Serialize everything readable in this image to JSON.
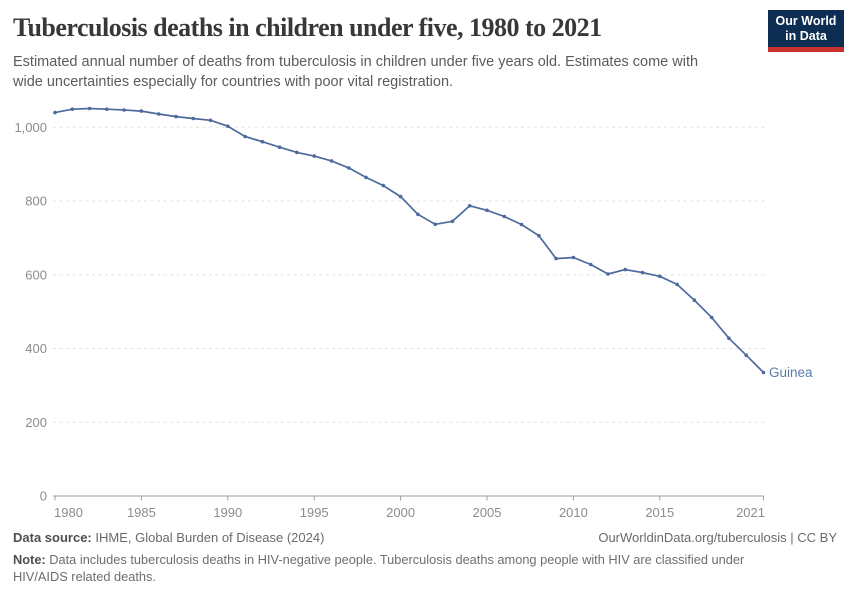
{
  "header": {
    "title": "Tuberculosis deaths in children under five, 1980 to 2021",
    "subtitle": "Estimated annual number of deaths from tuberculosis in children under five years old. Estimates come with wide uncertainties especially for countries with poor vital registration.",
    "logo": {
      "line1": "Our World",
      "line2": "in Data",
      "bg_color": "#0d2e52",
      "accent_color": "#c9302c"
    }
  },
  "chart_data": {
    "type": "line",
    "title": "Tuberculosis deaths in children under five, 1980 to 2021",
    "x": [
      1980,
      1981,
      1982,
      1983,
      1984,
      1985,
      1986,
      1987,
      1988,
      1989,
      1990,
      1991,
      1992,
      1993,
      1994,
      1995,
      1996,
      1997,
      1998,
      1999,
      2000,
      2001,
      2002,
      2003,
      2004,
      2005,
      2006,
      2007,
      2008,
      2009,
      2010,
      2011,
      2012,
      2013,
      2014,
      2015,
      2016,
      2017,
      2018,
      2019,
      2020,
      2021
    ],
    "series": [
      {
        "name": "Guinea",
        "color": "#4C6A9C",
        "values": [
          1040,
          1049,
          1051,
          1049,
          1047,
          1044,
          1036,
          1029,
          1024,
          1019,
          1003,
          975,
          961,
          946,
          932,
          922,
          909,
          890,
          864,
          842,
          812,
          764,
          737,
          745,
          787,
          775,
          758,
          736,
          706,
          644,
          647,
          628,
          602,
          614,
          606,
          596,
          574,
          531,
          484,
          428,
          382,
          335
        ]
      }
    ],
    "end_label": "Guinea",
    "label_color": "#5b7cab",
    "x_ticks": [
      {
        "label": "1980",
        "year": 1980
      },
      {
        "label": "1985",
        "year": 1985
      },
      {
        "label": "1990",
        "year": 1990
      },
      {
        "label": "1995",
        "year": 1995
      },
      {
        "label": "2000",
        "year": 2000
      },
      {
        "label": "2005",
        "year": 2005
      },
      {
        "label": "2010",
        "year": 2010
      },
      {
        "label": "2015",
        "year": 2015
      },
      {
        "label": "2021",
        "year": 2021
      }
    ],
    "y_ticks": [
      {
        "label": "0",
        "value": 0
      },
      {
        "label": "200",
        "value": 200
      },
      {
        "label": "400",
        "value": 400
      },
      {
        "label": "600",
        "value": 600
      },
      {
        "label": "800",
        "value": 800
      },
      {
        "label": "1,000",
        "value": 1000
      }
    ],
    "xlim": [
      1980,
      2021
    ],
    "ylim": [
      0,
      1075
    ],
    "xlabel": "",
    "ylabel": "",
    "grid": "horizontal-dashed",
    "legend_position": "end-of-line"
  },
  "footer": {
    "source_label": "Data source:",
    "source_text": "IHME, Global Burden of Disease (2024)",
    "attribution": "OurWorldinData.org/tuberculosis | CC BY",
    "note_label": "Note:",
    "note_text": "Data includes tuberculosis deaths in HIV-negative people. Tuberculosis deaths among people with HIV are classified under HIV/AIDS related deaths."
  }
}
